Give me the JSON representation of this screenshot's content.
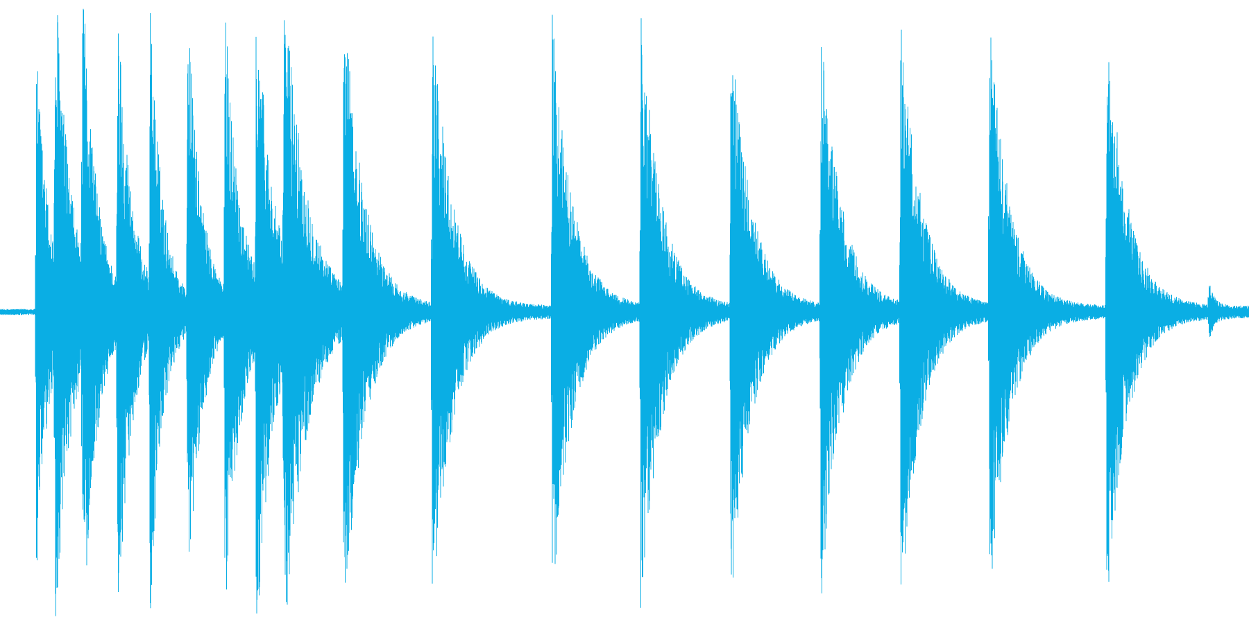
{
  "waveform": {
    "color": "#0aaee4",
    "background": "#ffffff",
    "baseline_noise": 0.02,
    "bursts": [
      {
        "t": 0.029,
        "amp": 0.88,
        "decay": 0.01
      },
      {
        "t": 0.044,
        "amp": 0.99,
        "decay": 0.012
      },
      {
        "t": 0.066,
        "amp": 0.94,
        "decay": 0.011
      },
      {
        "t": 0.094,
        "amp": 0.97,
        "decay": 0.011
      },
      {
        "t": 0.12,
        "amp": 0.92,
        "decay": 0.01
      },
      {
        "t": 0.15,
        "amp": 0.97,
        "decay": 0.011
      },
      {
        "t": 0.18,
        "amp": 0.95,
        "decay": 0.012
      },
      {
        "t": 0.205,
        "amp": 0.98,
        "decay": 0.013
      },
      {
        "t": 0.227,
        "amp": 0.96,
        "decay": 0.018
      },
      {
        "t": 0.275,
        "amp": 0.98,
        "decay": 0.016
      },
      {
        "t": 0.346,
        "amp": 0.99,
        "decay": 0.016
      },
      {
        "t": 0.442,
        "amp": 0.97,
        "decay": 0.016
      },
      {
        "t": 0.513,
        "amp": 0.99,
        "decay": 0.016
      },
      {
        "t": 0.585,
        "amp": 0.95,
        "decay": 0.016
      },
      {
        "t": 0.657,
        "amp": 0.96,
        "decay": 0.016
      },
      {
        "t": 0.721,
        "amp": 0.98,
        "decay": 0.016
      },
      {
        "t": 0.792,
        "amp": 0.97,
        "decay": 0.016
      },
      {
        "t": 0.886,
        "amp": 0.97,
        "decay": 0.016
      },
      {
        "t": 0.968,
        "amp": 0.08,
        "decay": 0.004
      }
    ]
  }
}
